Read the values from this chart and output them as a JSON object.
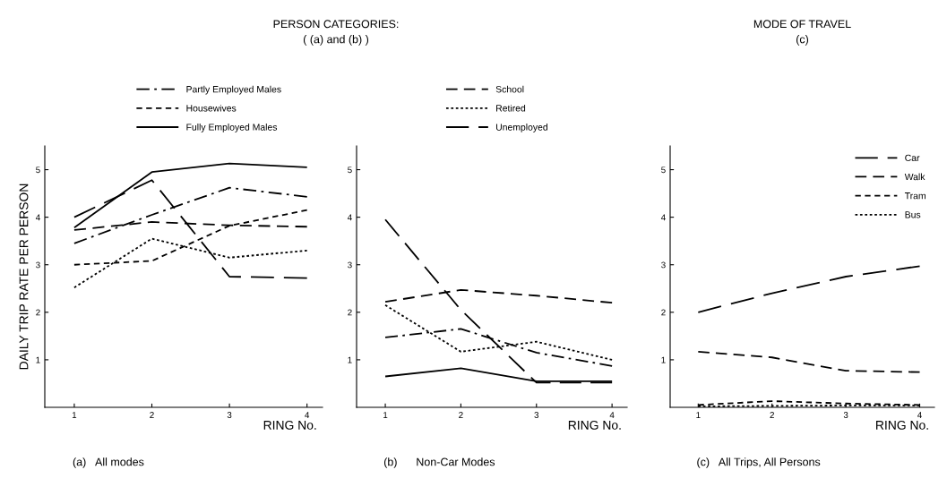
{
  "chart_data": [
    {
      "type": "line",
      "title": "PERSON CATEGORIES:\n( (a) and (b) )",
      "ylabel": "DAILY TRIP RATE PER PERSON",
      "xlabel": "RING No.",
      "x": [
        1,
        2,
        3,
        4
      ],
      "xlim": [
        0.62,
        4.2
      ],
      "xticks": [
        1,
        2,
        3,
        4
      ],
      "ylim": [
        0,
        5.5
      ],
      "yticks": [
        1,
        2,
        3,
        4,
        5
      ],
      "grid": false,
      "legend": "top",
      "marker": "none",
      "annotations": [
        "(a)   All modes"
      ],
      "series": [
        {
          "name": "Partly Employed Males",
          "color": "#000000",
          "line_style": "dashdot",
          "values": [
            3.45,
            4.05,
            4.62,
            4.43
          ]
        },
        {
          "name": "Housewives",
          "color": "#000000",
          "line_style": "shortdash",
          "values": [
            3.0,
            3.08,
            3.82,
            4.15
          ]
        },
        {
          "name": "Fully Employed Males",
          "color": "#000000",
          "line_style": "solid",
          "values": [
            3.78,
            4.95,
            5.13,
            5.05
          ]
        },
        {
          "color": "#000000",
          "line_style": "dashed",
          "values": [
            3.73,
            3.9,
            3.83,
            3.8
          ]
        },
        {
          "color": "#000000",
          "line_style": "dotted",
          "values": [
            2.52,
            3.55,
            3.15,
            3.3
          ]
        },
        {
          "color": "#000000",
          "line_style": "longdash",
          "values": [
            4.0,
            4.78,
            2.75,
            2.72
          ]
        }
      ]
    },
    {
      "type": "line",
      "xlabel": "RING No.",
      "x": [
        1,
        2,
        3,
        4
      ],
      "xlim": [
        0.62,
        4.2
      ],
      "xticks": [
        1,
        2,
        3,
        4
      ],
      "ylim": [
        0,
        5.5
      ],
      "yticks": [
        1,
        2,
        3,
        4,
        5
      ],
      "grid": false,
      "legend": "top",
      "marker": "none",
      "annotations": [
        "(b)      Non-Car Modes"
      ],
      "series": [
        {
          "name": "School",
          "color": "#000000",
          "line_style": "dashed",
          "values": [
            2.22,
            2.47,
            2.35,
            2.2
          ]
        },
        {
          "name": "Retired",
          "color": "#000000",
          "line_style": "dotted",
          "values": [
            2.15,
            1.17,
            1.38,
            1.0
          ]
        },
        {
          "name": "Unemployed",
          "color": "#000000",
          "line_style": "longdash",
          "values": [
            3.95,
            2.05,
            0.52,
            0.52
          ]
        },
        {
          "color": "#000000",
          "line_style": "dashdot",
          "values": [
            1.47,
            1.65,
            1.15,
            0.87
          ]
        },
        {
          "color": "#000000",
          "line_style": "solid",
          "values": [
            0.65,
            0.82,
            0.55,
            0.55
          ]
        }
      ]
    },
    {
      "type": "line",
      "title": "MODE OF TRAVEL\n(c)",
      "xlabel": "RING No.",
      "x": [
        1,
        2,
        3,
        4
      ],
      "xlim": [
        0.62,
        4.2
      ],
      "xticks": [
        1,
        2,
        3,
        4
      ],
      "ylim": [
        0,
        5.5
      ],
      "yticks": [
        1,
        2,
        3,
        4,
        5
      ],
      "grid": false,
      "legend": "top right",
      "marker": "none",
      "annotations": [
        "(c)   All Trips, All Persons"
      ],
      "series": [
        {
          "name": "Car",
          "color": "#000000",
          "line_style": "longdash",
          "values": [
            2.0,
            2.4,
            2.75,
            2.97
          ]
        },
        {
          "name": "Walk",
          "color": "#000000",
          "line_style": "dashed",
          "values": [
            1.17,
            1.05,
            0.77,
            0.74
          ]
        },
        {
          "name": "Tram",
          "color": "#000000",
          "line_style": "shortdash",
          "values": [
            0.05,
            0.13,
            0.08,
            0.05
          ]
        },
        {
          "name": "Bus",
          "color": "#000000",
          "line_style": "dotted",
          "values": [
            0.02,
            0.03,
            0.04,
            0.04
          ]
        }
      ]
    }
  ]
}
